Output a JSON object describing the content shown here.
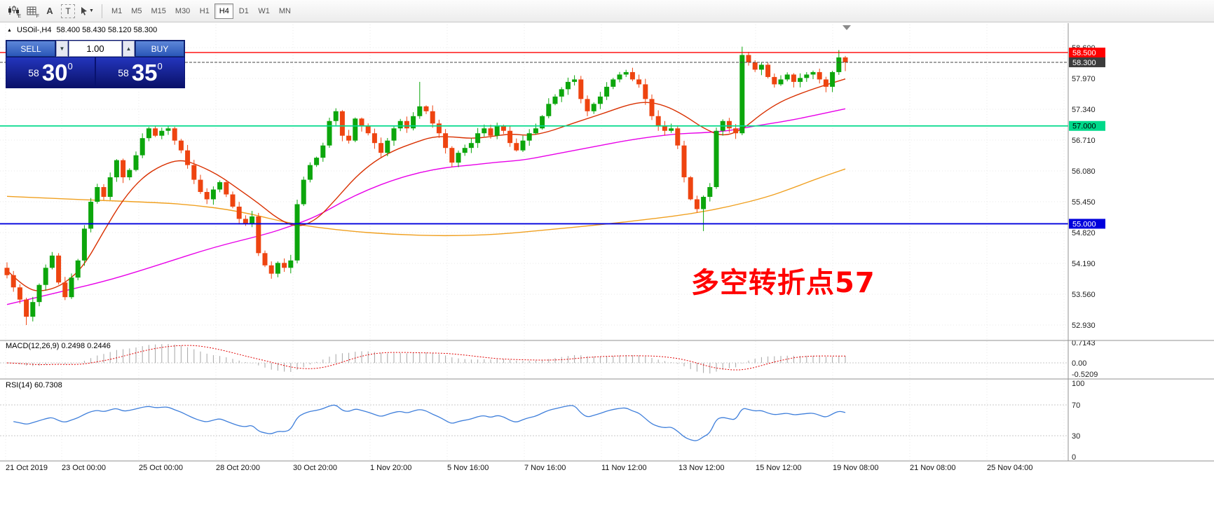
{
  "toolbar": {
    "icons": [
      {
        "name": "indicators-chart-icon",
        "badge": "E"
      },
      {
        "name": "grid-list-icon",
        "badge": "F"
      },
      {
        "name": "text-label-tool",
        "label": "A"
      },
      {
        "name": "text-box-tool",
        "label": "T"
      },
      {
        "name": "cursor-tool",
        "caret": "▼"
      }
    ],
    "timeframes": [
      "M1",
      "M5",
      "M15",
      "M30",
      "H1",
      "H4",
      "D1",
      "W1",
      "MN"
    ],
    "active_timeframe": "H4",
    "text_tool_label": "A",
    "type_tool_label": "T"
  },
  "symbol_bar": {
    "expand_icon": "▲",
    "symbol": "USOil-,H4",
    "ohlc": "58.400 58.430 58.120 58.300"
  },
  "trade_panel": {
    "sell_label": "SELL",
    "buy_label": "BUY",
    "volume": "1.00",
    "spin_down_icon": "▼",
    "spin_up_icon": "▲",
    "bid_small": "58",
    "bid_big": "30",
    "bid_sup": "0",
    "ask_small": "58",
    "ask_big": "35",
    "ask_sup": "0"
  },
  "annotation": {
    "text": "多空转折点57",
    "color": "#ff0000"
  },
  "price_axis": {
    "grid_labels": [
      "58.600",
      "57.970",
      "57.340",
      "56.710",
      "56.080",
      "55.450",
      "54.820",
      "54.190",
      "53.560",
      "52.930"
    ],
    "badges": [
      {
        "text": "58.500",
        "price": 58.5,
        "bg": "#ff0000",
        "fg": "#ffffff"
      },
      {
        "text": "58.300",
        "price": 58.3,
        "bg": "#3c3c3c",
        "fg": "#ffffff"
      },
      {
        "text": "57.000",
        "price": 57.0,
        "bg": "#00d98a",
        "fg": "#000000"
      },
      {
        "text": "55.000",
        "price": 55.0,
        "bg": "#0000dd",
        "fg": "#ffffff"
      }
    ]
  },
  "time_axis": {
    "labels": [
      "21 Oct 2019",
      "23 Oct 00:00",
      "25 Oct 00:00",
      "28 Oct 20:00",
      "30 Oct 20:00",
      "1 Nov 20:00",
      "5 Nov 16:00",
      "7 Nov 16:00",
      "11 Nov 12:00",
      "13 Nov 12:00",
      "15 Nov 12:00",
      "19 Nov 08:00",
      "21 Nov 08:00",
      "25 Nov 04:00"
    ]
  },
  "macd_panel": {
    "label": "MACD(12,26,9) 0.2498 0.2446",
    "axis": [
      "0.7143",
      "0.00",
      "-0.5209"
    ],
    "params": {
      "fast": 12,
      "slow": 26,
      "signal": 9
    },
    "current_main": 0.2498,
    "current_signal": 0.2446
  },
  "rsi_panel": {
    "label": "RSI(14) 60.7308",
    "axis": [
      "100",
      "70",
      "30",
      "0"
    ],
    "period": 14,
    "current": 60.7308,
    "levels": [
      70,
      30
    ]
  },
  "chart_data": {
    "type": "candlestick",
    "symbol": "USOil",
    "timeframe": "H4",
    "ohlc_current": {
      "open": 58.4,
      "high": 58.43,
      "low": 58.12,
      "close": 58.3
    },
    "open_first": 54.1,
    "closes": [
      53.95,
      53.7,
      53.45,
      53.1,
      53.4,
      53.75,
      54.1,
      54.35,
      53.8,
      53.5,
      53.9,
      54.25,
      54.9,
      55.45,
      55.75,
      55.55,
      55.95,
      56.3,
      55.95,
      56.1,
      56.4,
      56.75,
      56.95,
      56.8,
      56.9,
      56.95,
      56.7,
      56.5,
      56.2,
      55.9,
      55.65,
      55.5,
      55.7,
      55.85,
      55.6,
      55.35,
      55.1,
      55.0,
      55.15,
      54.4,
      54.15,
      53.98,
      54.2,
      54.1,
      54.25,
      55.4,
      55.9,
      56.2,
      56.35,
      56.6,
      57.1,
      57.3,
      56.8,
      56.7,
      57.15,
      57.0,
      56.85,
      56.65,
      56.45,
      56.7,
      56.95,
      57.1,
      56.95,
      57.2,
      57.4,
      57.3,
      57.05,
      56.85,
      56.55,
      56.25,
      56.45,
      56.55,
      56.65,
      56.85,
      56.95,
      56.8,
      57.0,
      56.9,
      56.65,
      56.5,
      56.7,
      56.85,
      56.95,
      57.2,
      57.45,
      57.6,
      57.75,
      57.9,
      57.95,
      57.55,
      57.3,
      57.45,
      57.6,
      57.8,
      57.95,
      58.05,
      58.1,
      57.95,
      57.85,
      57.55,
      57.2,
      57.0,
      56.9,
      56.95,
      56.6,
      55.95,
      55.5,
      55.3,
      55.55,
      55.75,
      56.9,
      57.1,
      56.95,
      56.85,
      58.45,
      58.3,
      58.15,
      58.25,
      58.0,
      57.85,
      57.95,
      58.05,
      57.9,
      57.98,
      58.05,
      58.1,
      57.95,
      57.8,
      58.1,
      58.4,
      58.3
    ],
    "wick_overrides": {
      "3": {
        "low": 52.93
      },
      "64": {
        "high": 57.9
      },
      "108": {
        "low": 54.85
      },
      "114": {
        "high": 58.62
      },
      "129": {
        "high": 58.55
      },
      "130": {
        "high": 58.43,
        "low": 58.12
      }
    },
    "y_axis": {
      "grid_top": 58.6,
      "grid_step": 0.63,
      "min": 52.8,
      "max": 58.75
    },
    "hlines": [
      {
        "price": 58.5,
        "color": "#ff0000",
        "width": 1.4,
        "label": "58.500"
      },
      {
        "price": 57.0,
        "color": "#00d98a",
        "width": 1.8,
        "label": "57.000"
      },
      {
        "price": 55.0,
        "color": "#0000dd",
        "width": 1.8,
        "label": "55.000"
      }
    ],
    "current_price_line": {
      "price": 58.3,
      "label": "58.300"
    },
    "ma_red": [
      [
        0,
        54.05
      ],
      [
        3,
        53.65
      ],
      [
        6,
        53.62
      ],
      [
        9,
        53.78
      ],
      [
        12,
        54.15
      ],
      [
        15,
        54.85
      ],
      [
        18,
        55.5
      ],
      [
        21,
        55.95
      ],
      [
        24,
        56.2
      ],
      [
        27,
        56.32
      ],
      [
        30,
        56.18
      ],
      [
        33,
        55.98
      ],
      [
        36,
        55.7
      ],
      [
        39,
        55.42
      ],
      [
        42,
        55.1
      ],
      [
        45,
        54.92
      ],
      [
        48,
        55.08
      ],
      [
        51,
        55.5
      ],
      [
        54,
        55.95
      ],
      [
        57,
        56.28
      ],
      [
        60,
        56.5
      ],
      [
        63,
        56.65
      ],
      [
        66,
        56.78
      ],
      [
        69,
        56.78
      ],
      [
        72,
        56.74
      ],
      [
        75,
        56.78
      ],
      [
        78,
        56.84
      ],
      [
        81,
        56.8
      ],
      [
        84,
        56.88
      ],
      [
        87,
        57.02
      ],
      [
        90,
        57.15
      ],
      [
        93,
        57.28
      ],
      [
        96,
        57.42
      ],
      [
        99,
        57.5
      ],
      [
        102,
        57.42
      ],
      [
        105,
        57.22
      ],
      [
        108,
        56.95
      ],
      [
        111,
        56.78
      ],
      [
        114,
        56.92
      ],
      [
        117,
        57.25
      ],
      [
        120,
        57.5
      ],
      [
        123,
        57.66
      ],
      [
        126,
        57.8
      ],
      [
        130,
        57.96
      ]
    ],
    "ma_magenta": [
      [
        0,
        53.35
      ],
      [
        8,
        53.6
      ],
      [
        16,
        53.85
      ],
      [
        24,
        54.18
      ],
      [
        32,
        54.52
      ],
      [
        40,
        54.78
      ],
      [
        44,
        54.95
      ],
      [
        48,
        55.15
      ],
      [
        52,
        55.45
      ],
      [
        56,
        55.7
      ],
      [
        60,
        55.9
      ],
      [
        64,
        56.05
      ],
      [
        68,
        56.15
      ],
      [
        72,
        56.2
      ],
      [
        76,
        56.26
      ],
      [
        80,
        56.3
      ],
      [
        84,
        56.4
      ],
      [
        88,
        56.5
      ],
      [
        92,
        56.6
      ],
      [
        96,
        56.7
      ],
      [
        100,
        56.78
      ],
      [
        104,
        56.84
      ],
      [
        108,
        56.86
      ],
      [
        112,
        56.9
      ],
      [
        116,
        57.0
      ],
      [
        120,
        57.08
      ],
      [
        124,
        57.18
      ],
      [
        130,
        57.35
      ]
    ],
    "ma_orange": [
      [
        0,
        55.56
      ],
      [
        10,
        55.5
      ],
      [
        20,
        55.45
      ],
      [
        28,
        55.4
      ],
      [
        36,
        55.26
      ],
      [
        44,
        55.0
      ],
      [
        52,
        54.86
      ],
      [
        60,
        54.78
      ],
      [
        68,
        54.75
      ],
      [
        76,
        54.78
      ],
      [
        84,
        54.88
      ],
      [
        92,
        54.98
      ],
      [
        100,
        55.1
      ],
      [
        106,
        55.2
      ],
      [
        112,
        55.35
      ],
      [
        118,
        55.55
      ],
      [
        122,
        55.74
      ],
      [
        126,
        55.94
      ],
      [
        130,
        56.12
      ]
    ],
    "colors": {
      "up": "#0ca60c",
      "down": "#ee4410",
      "ma_red": "#d93000",
      "ma_magenta": "#e800e8",
      "ma_orange": "#f0a020",
      "rsi": "#3f7fdb",
      "macd_hist": "#a6a6a6",
      "macd_signal": "#e00000",
      "grid": "#e8e8e8",
      "frame": "#909090"
    }
  }
}
